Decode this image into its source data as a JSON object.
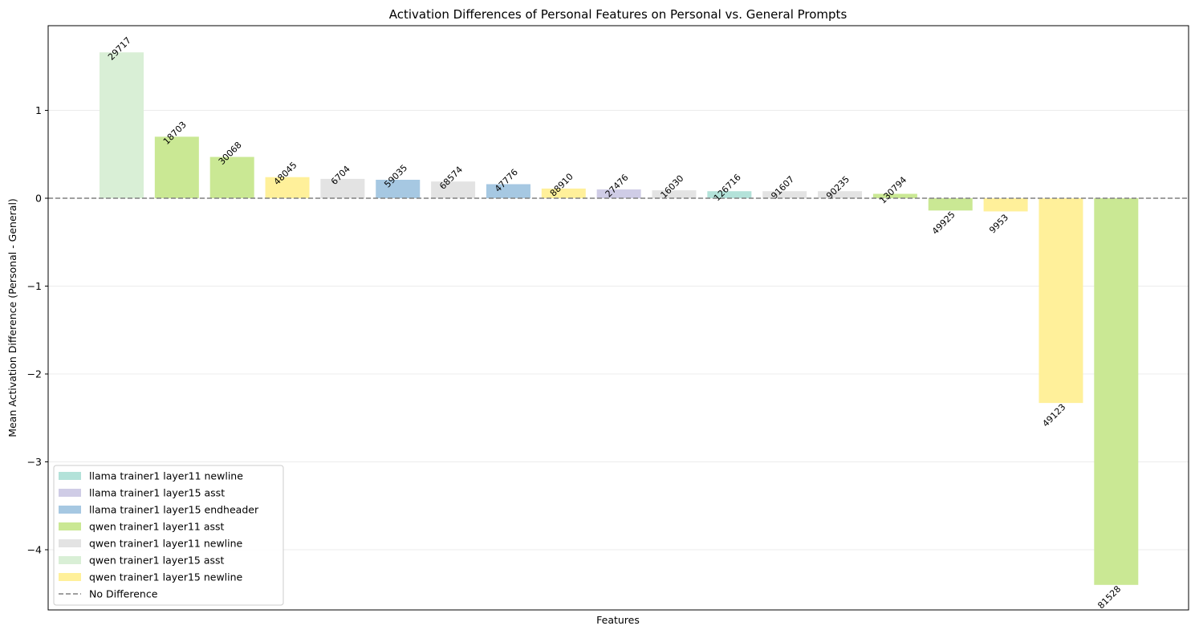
{
  "chart_data": {
    "type": "bar",
    "title": "Activation Differences of Personal Features on Personal vs. General Prompts",
    "xlabel": "Features",
    "ylabel": "Mean Activation Difference (Personal - General)",
    "ylim": [
      -4.7,
      1.95
    ],
    "yticks": [
      1,
      0,
      -1,
      -2,
      -3,
      -4
    ],
    "ytick_labels": [
      "1",
      "0",
      "−1",
      "−2",
      "−3",
      "−4"
    ],
    "grid": "y",
    "legend_position": "lower-left",
    "reference_line": {
      "y": 0,
      "style": "dashed",
      "color": "#808080",
      "label": "No Difference"
    },
    "groups": [
      {
        "name": "llama trainer1 layer11 newline",
        "color": "#b3e2d9"
      },
      {
        "name": "llama trainer1 layer15 asst",
        "color": "#cfcce6"
      },
      {
        "name": "llama trainer1 layer15 endheader",
        "color": "#a6c8e2"
      },
      {
        "name": "qwen trainer1 layer11 asst",
        "color": "#cae894"
      },
      {
        "name": "qwen trainer1 layer11 newline",
        "color": "#e3e3e3"
      },
      {
        "name": "qwen trainer1 layer15 asst",
        "color": "#d9efd6"
      },
      {
        "name": "qwen trainer1 layer15 newline",
        "color": "#fff09a"
      }
    ],
    "bars": [
      {
        "label": "29717",
        "value": 1.66,
        "group": 5
      },
      {
        "label": "18703",
        "value": 0.7,
        "group": 3
      },
      {
        "label": "30068",
        "value": 0.47,
        "group": 3
      },
      {
        "label": "48045",
        "value": 0.24,
        "group": 6
      },
      {
        "label": "6704",
        "value": 0.22,
        "group": 4
      },
      {
        "label": "59035",
        "value": 0.21,
        "group": 2
      },
      {
        "label": "68574",
        "value": 0.19,
        "group": 4
      },
      {
        "label": "47776",
        "value": 0.16,
        "group": 2
      },
      {
        "label": "88910",
        "value": 0.11,
        "group": 6
      },
      {
        "label": "27476",
        "value": 0.1,
        "group": 1
      },
      {
        "label": "16030",
        "value": 0.09,
        "group": 4
      },
      {
        "label": "126716",
        "value": 0.08,
        "group": 0
      },
      {
        "label": "91607",
        "value": 0.08,
        "group": 4
      },
      {
        "label": "90235",
        "value": 0.08,
        "group": 4
      },
      {
        "label": "130794",
        "value": 0.05,
        "group": 3
      },
      {
        "label": "49925",
        "value": -0.14,
        "group": 3
      },
      {
        "label": "9953",
        "value": -0.15,
        "group": 6
      },
      {
        "label": "49123",
        "value": -2.33,
        "group": 6
      },
      {
        "label": "81528",
        "value": -4.4,
        "group": 3
      }
    ]
  }
}
